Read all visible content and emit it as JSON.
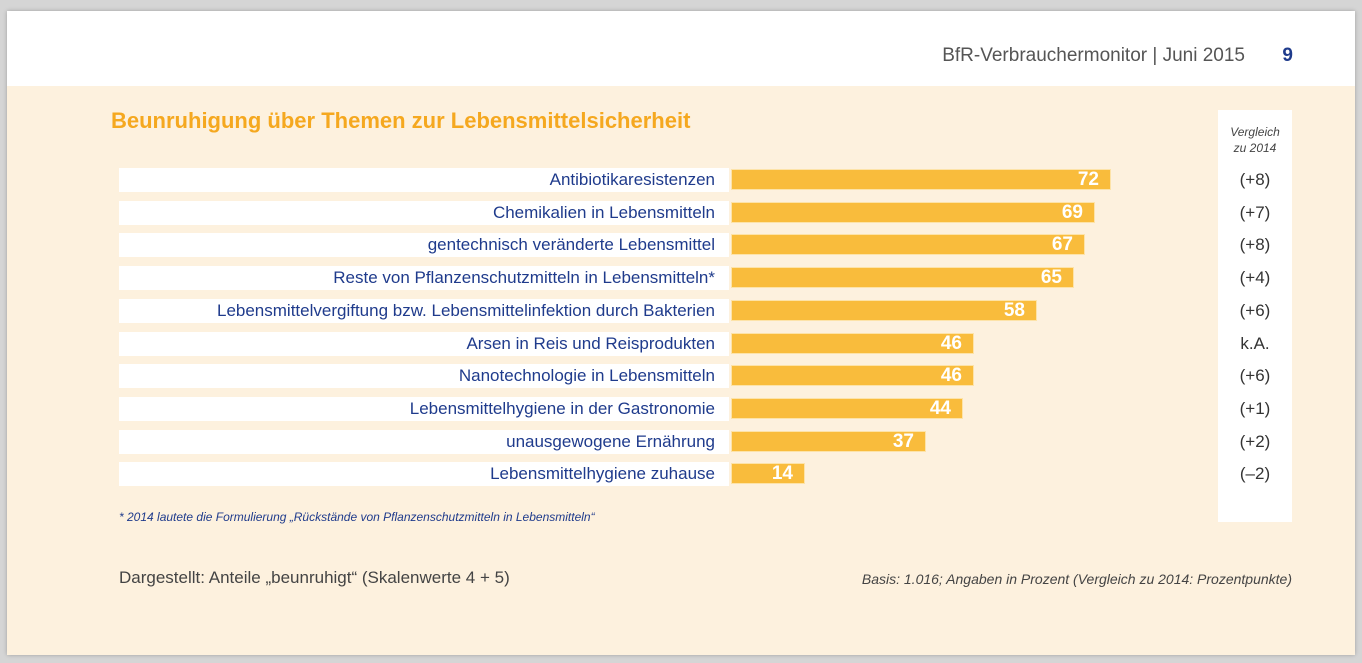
{
  "header": {
    "title": "BfR-Verbrauchermonitor | Juni 2015",
    "page_number": "9"
  },
  "chart_data": {
    "type": "bar",
    "orientation": "horizontal",
    "title": "Beunruhigung über Themen zur Lebensmittelsicherheit",
    "categories": [
      "Antibiotikaresistenzen",
      "Chemikalien in Lebensmitteln",
      "gentechnisch veränderte Lebensmittel",
      "Reste von Pflanzenschutzmitteln in Lebensmitteln*",
      "Lebensmittelvergiftung bzw. Lebensmittelinfektion durch Bakterien",
      "Arsen in Reis und Reisprodukten",
      "Nanotechnologie in Lebensmitteln",
      "Lebensmittelhygiene in der Gastronomie",
      "unausgewogene Ernährung",
      "Lebensmittelhygiene zuhause"
    ],
    "values": [
      72,
      69,
      67,
      65,
      58,
      46,
      46,
      44,
      37,
      14
    ],
    "comparison_header": "Vergleich zu 2014",
    "comparison": [
      "(+8)",
      "(+7)",
      "(+8)",
      "(+4)",
      "(+6)",
      "k.A.",
      "(+6)",
      "(+1)",
      "(+2)",
      "(–2)"
    ],
    "xlim": [
      0,
      100
    ],
    "grid": false,
    "bar_color": "#f9bc3c",
    "title_color": "#f5a81f",
    "label_color": "#1f3b8c"
  },
  "footnote": "* 2014 lautete die Formulierung „Rückstände von Pflanzenschutzmitteln in Lebensmitteln“",
  "note_left": "Dargestellt: Anteile „beunruhigt“ (Skalenwerte 4 + 5)",
  "note_right": "Basis: 1.016; Angaben in Prozent (Vergleich zu 2014: Prozentpunkte)"
}
